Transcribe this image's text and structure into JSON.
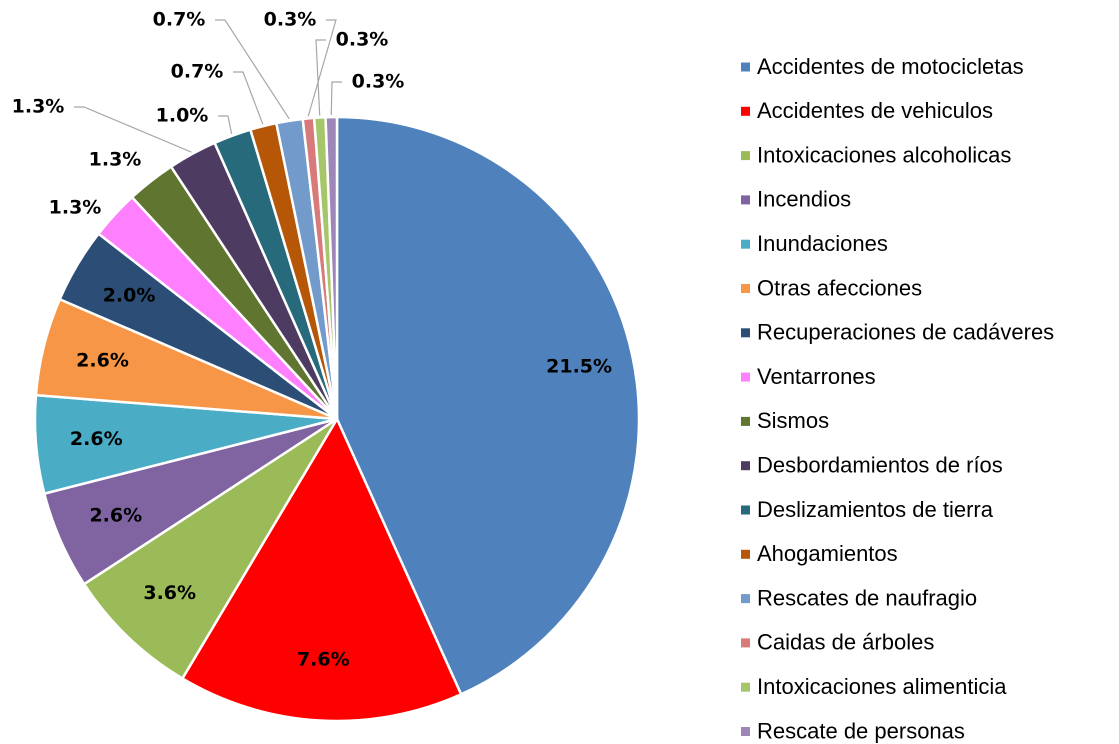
{
  "chart_data": {
    "type": "pie",
    "categories": [
      "Accidentes de motocicletas",
      "Accidentes de vehiculos",
      "Intoxicaciones alcoholicas",
      "Incendios",
      "Inundaciones",
      "Otras afecciones",
      "Recuperaciones de cadáveres",
      "Ventarrones",
      "Sismos",
      "Desbordamientos de ríos",
      "Deslizamientos de tierra",
      "Ahogamientos",
      "Rescates de naufragio",
      "Caidas de árboles",
      "Intoxicaciones alimenticia",
      "Rescate de personas"
    ],
    "values": [
      21.5,
      7.6,
      3.6,
      2.6,
      2.6,
      2.6,
      2.0,
      1.3,
      1.3,
      1.3,
      1.0,
      0.7,
      0.7,
      0.3,
      0.3,
      0.3
    ],
    "value_labels": [
      "21.5%",
      "7.6%",
      "3.6%",
      "2.6%",
      "2.6%",
      "2.6%",
      "2.0%",
      "1.3%",
      "1.3%",
      "1.3%",
      "1.0%",
      "0.7%",
      "0.7%",
      "0.3%",
      "0.3%",
      "0.3%"
    ],
    "colors": [
      "#4f81bd",
      "#ff0000",
      "#9bbb59",
      "#8064a2",
      "#4bacc6",
      "#f79646",
      "#2c4d75",
      "#ff80ff",
      "#5f7530",
      "#4d3b62",
      "#276a7c",
      "#b65708",
      "#729aca",
      "#d97a7a",
      "#a5c66a",
      "#9e87b8"
    ],
    "legend": "right"
  }
}
